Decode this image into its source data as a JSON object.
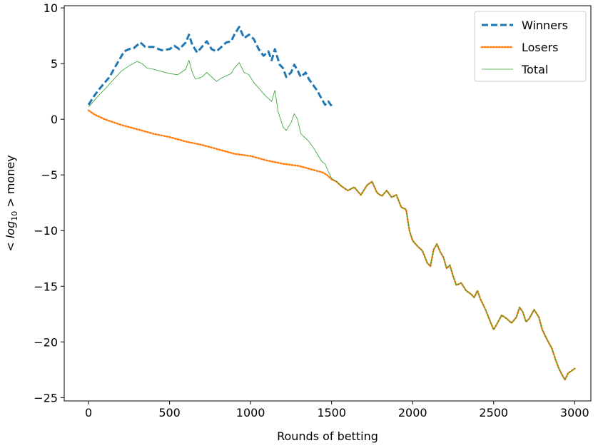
{
  "chart_data": {
    "type": "line",
    "xlabel": "Rounds of betting",
    "ylabel": "< log10 > money",
    "xlim": [
      -150,
      3100
    ],
    "ylim": [
      -25.3,
      10.2
    ],
    "xticks": [
      0,
      500,
      1000,
      1500,
      2000,
      2500,
      3000
    ],
    "yticks": [
      -25,
      -20,
      -15,
      -10,
      -5,
      0,
      5,
      10
    ],
    "grid": false,
    "legend_position": "top-right",
    "series": [
      {
        "name": "Winners",
        "color": "#1f77b4",
        "style": "dashed",
        "points": [
          [
            0,
            1.3
          ],
          [
            30,
            2.0
          ],
          [
            60,
            2.6
          ],
          [
            100,
            3.3
          ],
          [
            130,
            3.8
          ],
          [
            160,
            4.6
          ],
          [
            200,
            5.6
          ],
          [
            220,
            6.1
          ],
          [
            250,
            6.3
          ],
          [
            280,
            6.4
          ],
          [
            320,
            6.9
          ],
          [
            350,
            6.5
          ],
          [
            400,
            6.5
          ],
          [
            450,
            6.2
          ],
          [
            500,
            6.3
          ],
          [
            530,
            6.6
          ],
          [
            560,
            6.3
          ],
          [
            600,
            6.9
          ],
          [
            620,
            7.6
          ],
          [
            640,
            6.7
          ],
          [
            670,
            6.0
          ],
          [
            700,
            6.5
          ],
          [
            730,
            7.0
          ],
          [
            760,
            6.3
          ],
          [
            790,
            6.1
          ],
          [
            820,
            6.5
          ],
          [
            850,
            6.9
          ],
          [
            880,
            7.0
          ],
          [
            900,
            7.6
          ],
          [
            930,
            8.3
          ],
          [
            960,
            7.3
          ],
          [
            990,
            7.6
          ],
          [
            1020,
            7.2
          ],
          [
            1050,
            6.3
          ],
          [
            1080,
            5.7
          ],
          [
            1110,
            6.1
          ],
          [
            1130,
            5.3
          ],
          [
            1150,
            6.3
          ],
          [
            1180,
            4.9
          ],
          [
            1200,
            4.6
          ],
          [
            1220,
            3.8
          ],
          [
            1250,
            4.2
          ],
          [
            1270,
            4.9
          ],
          [
            1290,
            4.4
          ],
          [
            1310,
            3.8
          ],
          [
            1340,
            4.2
          ],
          [
            1360,
            3.6
          ],
          [
            1390,
            3.0
          ],
          [
            1410,
            2.6
          ],
          [
            1440,
            1.8
          ],
          [
            1460,
            1.3
          ],
          [
            1480,
            1.6
          ],
          [
            1500,
            1.2
          ]
        ]
      },
      {
        "name": "Losers",
        "color": "#ff7f0e",
        "style": "dotted",
        "points": [
          [
            0,
            0.8
          ],
          [
            40,
            0.4
          ],
          [
            100,
            0.0
          ],
          [
            200,
            -0.5
          ],
          [
            300,
            -0.9
          ],
          [
            400,
            -1.3
          ],
          [
            500,
            -1.6
          ],
          [
            600,
            -2.0
          ],
          [
            700,
            -2.3
          ],
          [
            800,
            -2.7
          ],
          [
            900,
            -3.1
          ],
          [
            1000,
            -3.3
          ],
          [
            1100,
            -3.7
          ],
          [
            1200,
            -4.0
          ],
          [
            1300,
            -4.2
          ],
          [
            1400,
            -4.6
          ],
          [
            1450,
            -4.8
          ],
          [
            1480,
            -5.1
          ],
          [
            1500,
            -5.4
          ],
          [
            1530,
            -5.6
          ],
          [
            1560,
            -6.0
          ],
          [
            1600,
            -6.4
          ],
          [
            1640,
            -6.1
          ],
          [
            1680,
            -6.8
          ],
          [
            1720,
            -5.9
          ],
          [
            1750,
            -5.6
          ],
          [
            1780,
            -6.6
          ],
          [
            1810,
            -6.9
          ],
          [
            1840,
            -6.4
          ],
          [
            1870,
            -7.0
          ],
          [
            1900,
            -6.8
          ],
          [
            1930,
            -7.9
          ],
          [
            1960,
            -8.1
          ],
          [
            1980,
            -10.0
          ],
          [
            2000,
            -10.9
          ],
          [
            2030,
            -11.4
          ],
          [
            2060,
            -11.8
          ],
          [
            2090,
            -12.9
          ],
          [
            2110,
            -13.2
          ],
          [
            2130,
            -11.7
          ],
          [
            2150,
            -11.2
          ],
          [
            2170,
            -11.9
          ],
          [
            2190,
            -12.4
          ],
          [
            2210,
            -13.4
          ],
          [
            2230,
            -13.1
          ],
          [
            2250,
            -14.1
          ],
          [
            2270,
            -14.9
          ],
          [
            2300,
            -14.7
          ],
          [
            2330,
            -15.4
          ],
          [
            2360,
            -15.7
          ],
          [
            2380,
            -16.0
          ],
          [
            2400,
            -15.4
          ],
          [
            2420,
            -16.2
          ],
          [
            2450,
            -17.1
          ],
          [
            2480,
            -18.2
          ],
          [
            2500,
            -18.9
          ],
          [
            2520,
            -18.4
          ],
          [
            2550,
            -17.6
          ],
          [
            2580,
            -17.9
          ],
          [
            2610,
            -18.3
          ],
          [
            2640,
            -17.8
          ],
          [
            2660,
            -16.9
          ],
          [
            2680,
            -17.3
          ],
          [
            2700,
            -18.2
          ],
          [
            2720,
            -17.9
          ],
          [
            2750,
            -17.1
          ],
          [
            2780,
            -17.8
          ],
          [
            2800,
            -18.9
          ],
          [
            2830,
            -19.8
          ],
          [
            2860,
            -20.6
          ],
          [
            2880,
            -21.5
          ],
          [
            2900,
            -22.3
          ],
          [
            2920,
            -22.9
          ],
          [
            2940,
            -23.4
          ],
          [
            2960,
            -22.8
          ],
          [
            2980,
            -22.6
          ],
          [
            3000,
            -22.4
          ]
        ]
      },
      {
        "name": "Total",
        "color": "#2ca02c",
        "style": "solid",
        "points": [
          [
            0,
            1.1
          ],
          [
            30,
            1.6
          ],
          [
            60,
            2.1
          ],
          [
            100,
            2.7
          ],
          [
            150,
            3.5
          ],
          [
            200,
            4.3
          ],
          [
            250,
            4.8
          ],
          [
            300,
            5.2
          ],
          [
            330,
            5.0
          ],
          [
            360,
            4.6
          ],
          [
            400,
            4.5
          ],
          [
            450,
            4.3
          ],
          [
            500,
            4.1
          ],
          [
            550,
            4.0
          ],
          [
            600,
            4.5
          ],
          [
            620,
            5.3
          ],
          [
            640,
            4.2
          ],
          [
            660,
            3.6
          ],
          [
            700,
            3.8
          ],
          [
            730,
            4.2
          ],
          [
            760,
            3.8
          ],
          [
            790,
            3.4
          ],
          [
            820,
            3.7
          ],
          [
            850,
            3.9
          ],
          [
            880,
            4.1
          ],
          [
            900,
            4.6
          ],
          [
            930,
            5.1
          ],
          [
            960,
            4.2
          ],
          [
            990,
            4.0
          ],
          [
            1020,
            3.3
          ],
          [
            1050,
            2.8
          ],
          [
            1080,
            2.3
          ],
          [
            1100,
            2.0
          ],
          [
            1130,
            1.6
          ],
          [
            1150,
            2.6
          ],
          [
            1170,
            0.7
          ],
          [
            1200,
            -0.7
          ],
          [
            1220,
            -1.0
          ],
          [
            1250,
            -0.3
          ],
          [
            1270,
            0.5
          ],
          [
            1290,
            0.0
          ],
          [
            1310,
            -1.3
          ],
          [
            1340,
            -1.7
          ],
          [
            1360,
            -2.0
          ],
          [
            1390,
            -2.6
          ],
          [
            1410,
            -3.1
          ],
          [
            1440,
            -3.8
          ],
          [
            1460,
            -4.0
          ],
          [
            1480,
            -4.7
          ],
          [
            1500,
            -5.3
          ],
          [
            1530,
            -5.6
          ],
          [
            1560,
            -6.0
          ],
          [
            1600,
            -6.4
          ],
          [
            1640,
            -6.1
          ],
          [
            1680,
            -6.8
          ],
          [
            1720,
            -5.9
          ],
          [
            1750,
            -5.6
          ],
          [
            1780,
            -6.6
          ],
          [
            1810,
            -6.9
          ],
          [
            1840,
            -6.4
          ],
          [
            1870,
            -7.0
          ],
          [
            1900,
            -6.8
          ],
          [
            1930,
            -7.9
          ],
          [
            1960,
            -8.1
          ],
          [
            1980,
            -10.0
          ],
          [
            2000,
            -10.9
          ],
          [
            2030,
            -11.4
          ],
          [
            2060,
            -11.8
          ],
          [
            2090,
            -12.9
          ],
          [
            2110,
            -13.2
          ],
          [
            2130,
            -11.7
          ],
          [
            2150,
            -11.2
          ],
          [
            2170,
            -11.9
          ],
          [
            2190,
            -12.4
          ],
          [
            2210,
            -13.4
          ],
          [
            2230,
            -13.1
          ],
          [
            2250,
            -14.1
          ],
          [
            2270,
            -14.9
          ],
          [
            2300,
            -14.7
          ],
          [
            2330,
            -15.4
          ],
          [
            2360,
            -15.7
          ],
          [
            2380,
            -16.0
          ],
          [
            2400,
            -15.4
          ],
          [
            2420,
            -16.2
          ],
          [
            2450,
            -17.1
          ],
          [
            2480,
            -18.2
          ],
          [
            2500,
            -18.9
          ],
          [
            2520,
            -18.4
          ],
          [
            2550,
            -17.6
          ],
          [
            2580,
            -17.9
          ],
          [
            2610,
            -18.3
          ],
          [
            2640,
            -17.8
          ],
          [
            2660,
            -16.9
          ],
          [
            2680,
            -17.3
          ],
          [
            2700,
            -18.2
          ],
          [
            2720,
            -17.9
          ],
          [
            2750,
            -17.1
          ],
          [
            2780,
            -17.8
          ],
          [
            2800,
            -18.9
          ],
          [
            2830,
            -19.8
          ],
          [
            2860,
            -20.6
          ],
          [
            2880,
            -21.5
          ],
          [
            2900,
            -22.3
          ],
          [
            2920,
            -22.9
          ],
          [
            2940,
            -23.4
          ],
          [
            2960,
            -22.8
          ],
          [
            2980,
            -22.6
          ],
          [
            3000,
            -22.4
          ]
        ]
      }
    ]
  }
}
